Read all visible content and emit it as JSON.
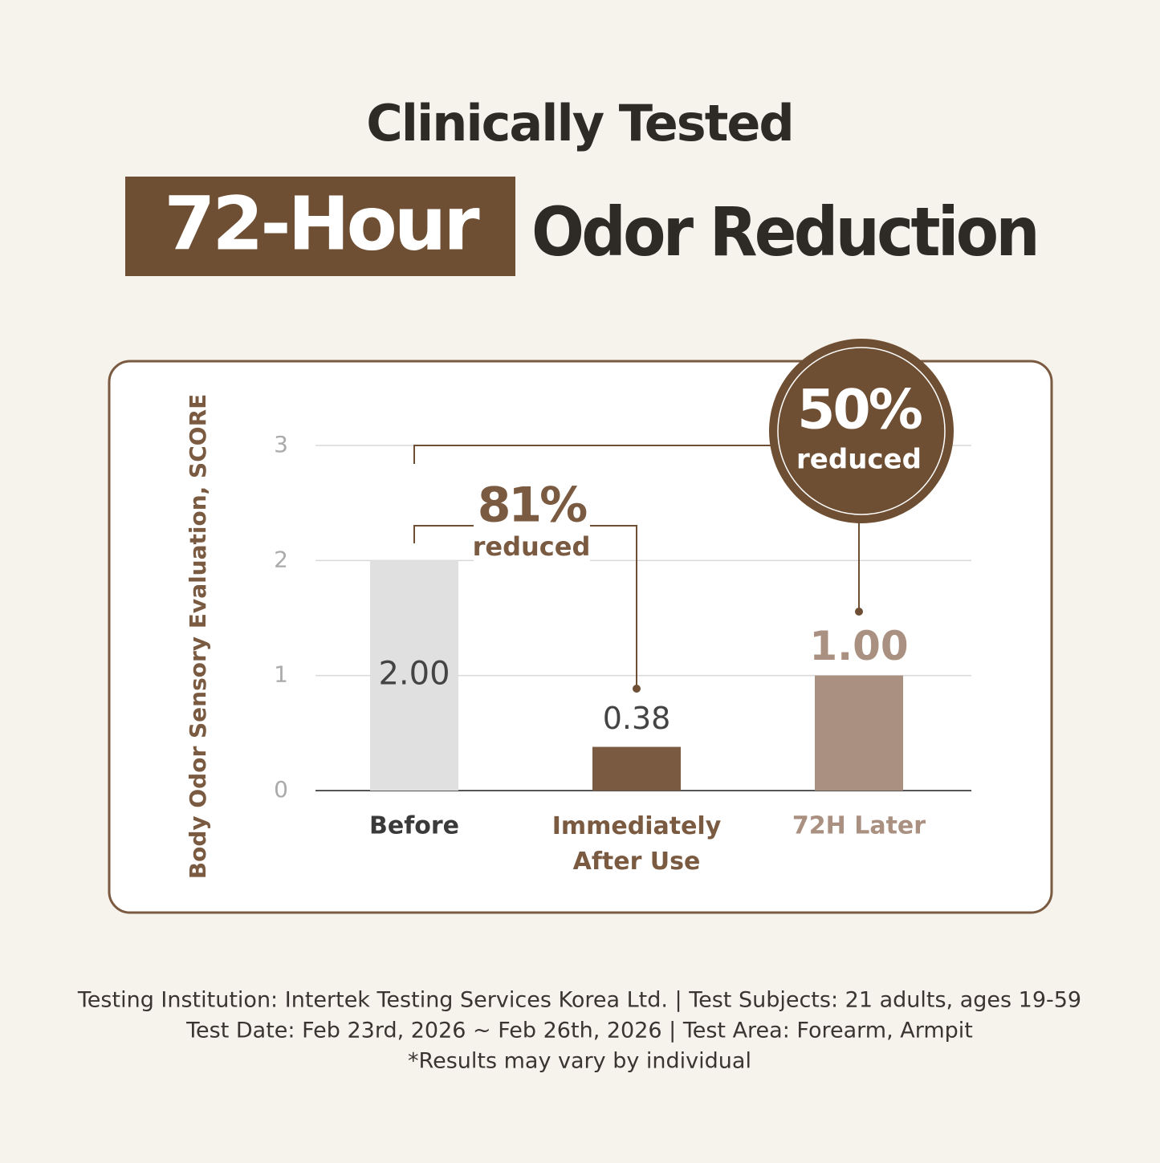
{
  "header": {
    "title": "Clinically Tested",
    "highlight": "72-Hour",
    "subtitle": "Odor Reduction"
  },
  "chart_data": {
    "type": "bar",
    "y_label": "Body Odor Sensory Evaluation, SCORE",
    "categories": [
      "Before",
      "Immediately\nAfter Use",
      "72H Later"
    ],
    "values": [
      2.0,
      0.38,
      1.0
    ],
    "value_labels": [
      "2.00",
      "0.38",
      "1.00"
    ],
    "colors": [
      "#e0e0e0",
      "#7a5a40",
      "#a99080"
    ],
    "ylim": [
      0,
      3
    ],
    "yticks": [
      0,
      1,
      2,
      3
    ],
    "grid": true,
    "annotations": [
      {
        "pct": "81%",
        "text": "reduced"
      },
      {
        "pct": "50%",
        "text": "reduced"
      }
    ]
  },
  "footer": {
    "lines": [
      "Testing Institution: Intertek Testing Services Korea Ltd.  |  Test Subjects: 21 adults, ages 19-59",
      "Test Date: Feb 23rd, 2026 ~ Feb 26th, 2026  |  Test Area: Forearm, Armpit",
      "*Results may vary by individual"
    ]
  }
}
